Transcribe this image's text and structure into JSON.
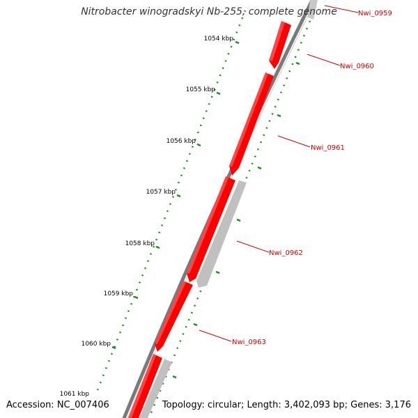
{
  "title": "Nitrobacter winogradskyi Nb-255, complete genome",
  "accession_text": "Accession: NC_007406",
  "summary_text": "Topology: circular; Length: 3,402,093 bp; Genes: 3,176",
  "colors": {
    "backbone": "#7a7a7a",
    "forward_gene": "#ff0000",
    "reverse_gene": "#c0c0c0",
    "ticks": "#1f8a1f",
    "gene_label": "#cc0000",
    "tick_label": "#000000"
  },
  "tick_labels": [
    "1054 kbp",
    "1055 kbp",
    "1056 kbp",
    "1057 kbp",
    "1058 kbp",
    "1059 kbp",
    "1060 kbp",
    "1061 kbp"
  ],
  "gene_labels": [
    "Nwi_0959",
    "Nwi_0960",
    "Nwi_0961",
    "Nwi_0962",
    "Nwi_0963"
  ]
}
